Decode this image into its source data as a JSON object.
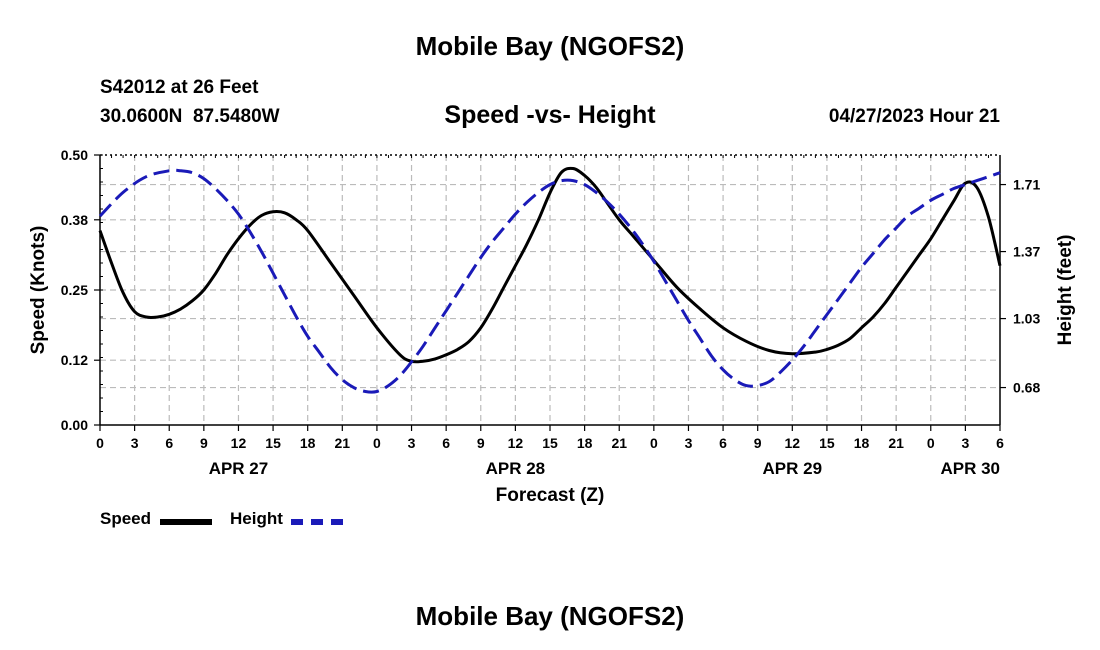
{
  "header": {
    "title": "Mobile Bay (NGOFS2)",
    "station": "S42012 at 26 Feet",
    "coords": "30.0600N  87.5480W",
    "subtitle": "Speed -vs- Height",
    "datetime": "04/27/2023 Hour 21"
  },
  "footer": {
    "title": "Mobile Bay (NGOFS2)"
  },
  "legend": {
    "speed_label": "Speed",
    "height_label": "Height"
  },
  "colors": {
    "speed": "#000000",
    "height": "#1a1ab8",
    "grid": "#bbbbbb"
  },
  "chart_data": {
    "type": "line",
    "xlabel": "Forecast (Z)",
    "ylabel_left": "Speed (Knots)",
    "ylabel_right": "Height (feet)",
    "xlim": [
      0,
      78
    ],
    "ylim_left": [
      0.0,
      0.5
    ],
    "ylim_right": [
      0.49,
      1.86
    ],
    "x_ticks": [
      0,
      3,
      6,
      9,
      12,
      15,
      18,
      21,
      24,
      27,
      30,
      33,
      36,
      39,
      42,
      45,
      48,
      51,
      54,
      57,
      60,
      63,
      66,
      69,
      72,
      75,
      78
    ],
    "x_tick_labels": [
      "0",
      "3",
      "6",
      "9",
      "12",
      "15",
      "18",
      "21",
      "0",
      "3",
      "6",
      "9",
      "12",
      "15",
      "18",
      "21",
      "0",
      "3",
      "6",
      "9",
      "12",
      "15",
      "18",
      "21",
      "0",
      "3",
      "6"
    ],
    "date_labels": [
      {
        "x": 12,
        "label": "APR 27"
      },
      {
        "x": 36,
        "label": "APR 28"
      },
      {
        "x": 60,
        "label": "APR 29"
      },
      {
        "x": 78,
        "label": "APR 30"
      }
    ],
    "y_left_ticks": [
      0.0,
      0.12,
      0.25,
      0.38,
      0.5
    ],
    "y_left_tick_labels": [
      "0.00",
      "0.12",
      "0.25",
      "0.38",
      "0.50"
    ],
    "y_right_ticks": [
      0.68,
      1.03,
      1.37,
      1.71
    ],
    "y_right_tick_labels": [
      "0.68",
      "1.03",
      "1.37",
      "1.71"
    ],
    "grid": true,
    "series": [
      {
        "name": "Speed",
        "axis": "left",
        "style": "solid",
        "x": [
          0,
          1,
          2,
          3,
          4,
          5,
          6,
          7,
          8,
          9,
          10,
          11,
          12,
          13,
          14,
          15,
          16,
          17,
          18,
          20,
          22,
          24,
          26,
          27,
          28,
          29,
          30,
          31,
          32,
          33,
          34,
          35,
          36,
          37,
          38,
          39,
          40,
          41,
          42,
          43,
          44,
          45,
          46,
          48,
          50,
          52,
          54,
          56,
          58,
          60,
          62,
          63,
          64,
          65,
          66,
          67,
          68,
          69,
          70,
          71,
          72,
          73,
          74,
          75,
          76,
          77,
          78
        ],
        "values": [
          0.36,
          0.3,
          0.245,
          0.21,
          0.2,
          0.2,
          0.205,
          0.215,
          0.23,
          0.25,
          0.28,
          0.315,
          0.345,
          0.37,
          0.388,
          0.395,
          0.393,
          0.38,
          0.36,
          0.3,
          0.24,
          0.18,
          0.13,
          0.118,
          0.118,
          0.122,
          0.13,
          0.14,
          0.155,
          0.18,
          0.215,
          0.255,
          0.295,
          0.335,
          0.38,
          0.43,
          0.468,
          0.475,
          0.462,
          0.44,
          0.41,
          0.38,
          0.355,
          0.305,
          0.255,
          0.215,
          0.18,
          0.155,
          0.138,
          0.132,
          0.135,
          0.14,
          0.148,
          0.16,
          0.18,
          0.2,
          0.225,
          0.255,
          0.285,
          0.315,
          0.345,
          0.38,
          0.415,
          0.448,
          0.44,
          0.385,
          0.295
        ]
      },
      {
        "name": "Height",
        "axis": "right",
        "style": "dashed",
        "x": [
          0,
          2,
          4,
          6,
          7,
          8,
          9,
          10,
          11,
          12,
          13,
          14,
          15,
          16,
          17,
          18,
          19,
          20,
          21,
          22,
          23,
          24,
          25,
          26,
          27,
          28,
          29,
          30,
          31,
          32,
          33,
          34,
          35,
          36,
          37,
          38,
          39,
          40,
          41,
          42,
          43,
          44,
          45,
          46,
          47,
          48,
          49,
          50,
          51,
          52,
          53,
          54,
          55,
          56,
          57,
          58,
          59,
          60,
          61,
          62,
          63,
          64,
          65,
          66,
          67,
          68,
          69,
          70,
          71,
          72,
          73,
          74,
          75,
          76,
          77,
          78
        ],
        "values": [
          1.55,
          1.67,
          1.75,
          1.78,
          1.78,
          1.77,
          1.74,
          1.69,
          1.63,
          1.56,
          1.47,
          1.37,
          1.26,
          1.15,
          1.04,
          0.94,
          0.86,
          0.78,
          0.72,
          0.68,
          0.66,
          0.66,
          0.69,
          0.74,
          0.81,
          0.89,
          0.98,
          1.07,
          1.16,
          1.25,
          1.34,
          1.42,
          1.49,
          1.56,
          1.62,
          1.67,
          1.71,
          1.73,
          1.73,
          1.71,
          1.67,
          1.62,
          1.56,
          1.49,
          1.41,
          1.32,
          1.22,
          1.12,
          1.02,
          0.93,
          0.84,
          0.77,
          0.72,
          0.69,
          0.69,
          0.71,
          0.76,
          0.82,
          0.89,
          0.97,
          1.05,
          1.13,
          1.21,
          1.29,
          1.36,
          1.43,
          1.49,
          1.55,
          1.59,
          1.63,
          1.66,
          1.69,
          1.71,
          1.73,
          1.75,
          1.77
        ]
      }
    ]
  }
}
